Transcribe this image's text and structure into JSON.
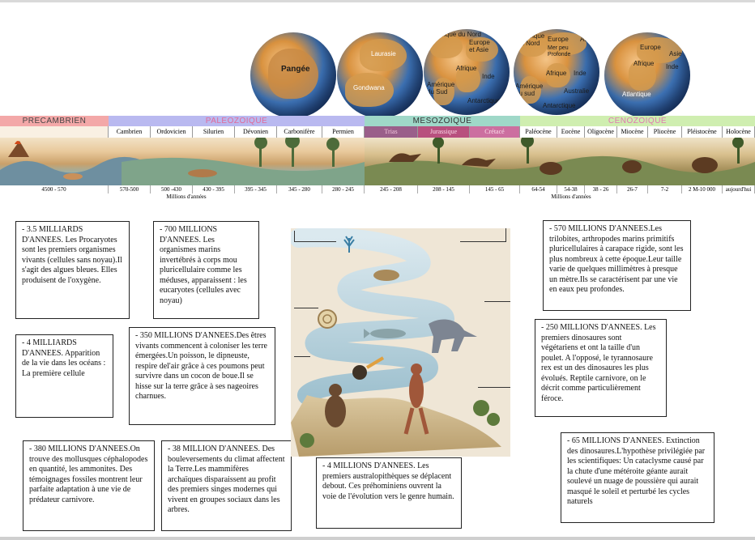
{
  "globes": [
    {
      "labels": [
        "Pangée"
      ]
    },
    {
      "labels": [
        "Laurasie",
        "Gondwana"
      ]
    },
    {
      "labels": [
        "Amérique du Nord",
        "Europe et Asie",
        "Afrique",
        "Inde",
        "Amérique du Sud",
        "Antarctique"
      ]
    },
    {
      "labels": [
        "Amérique du Nord",
        "Europe",
        "Asie",
        "Mer peu Profonde",
        "Afrique",
        "Inde",
        "Amérique du sud",
        "Australie",
        "Antarctique"
      ]
    },
    {
      "labels": [
        "Europe",
        "Asie",
        "Afrique",
        "Inde",
        "Atlantique"
      ]
    }
  ],
  "timeline": {
    "eras": [
      "PRECAMBRIEN",
      "PALEOZOIQUE",
      "MESOZOIQUE",
      "CENOZOIQUE"
    ],
    "periods": [
      "Cambrien",
      "Ordovicien",
      "Silurien",
      "Dévonien",
      "Carbonifère",
      "Permien",
      "Trias",
      "Jurassique",
      "Crétacé",
      "Paléocène",
      "Eocène",
      "Oligocène",
      "Miocène",
      "Pliocène",
      "Pléistocène",
      "Holocène"
    ],
    "ranges": [
      "4500 - 570",
      "570-500",
      "500 -430",
      "430 - 395",
      "395 - 345",
      "345 - 280",
      "280 - 245",
      "245 - 208",
      "208 - 145",
      "145 - 65",
      "64-54",
      "54-38",
      "38 - 26",
      "26-7",
      "7-2",
      "2 M-10 000",
      "aujourd'hui"
    ],
    "unit_left": "Millions d'années",
    "unit_right": "Millions d'années"
  },
  "boxes": {
    "b35md": "- 3.5 MILLIARDS D'ANNEES. Les Procaryotes sont les premiers organismes vivants (cellules sans noyau).Il s'agit des algues bleues. Elles produisent de l'oxygène.",
    "b700m": "- 700 MILLIONS D'ANNEES. Les organismes marins invertébrés à corps mou pluricellulaire comme les méduses, apparaissent : les eucaryotes (cellules avec noyau)",
    "b570m": "- 570 MILLIONS D'ANNEES.Les trilobites, arthropodes marins primitifs pluricellulaires à carapace rigide, sont les plus nombreux à cette époque.Leur taille varie de quelques millimètres à presque un mètre.Ils se caractérisent par une vie en eaux peu profondes.",
    "b4md": "- 4 MILLIARDS D'ANNEES. Apparition de la vie dans les océans : La première cellule",
    "b350m": "- 350 MILLIONS D'ANNEES.Des êtres vivants commencent à coloniser les terre émergées.Un poisson, le dipneuste, respire del'air grâce à ces poumons peut survivre dans un cocon de boue.Il se hisse sur la terre grâce à ses nageoires charnues.",
    "b250m": "- 250 MILLIONS D'ANNEES. Les premiers dinosaures sont végétariens et ont la taille d'un poulet. A l'opposé, le tyrannosaure rex est un des dinosaures les plus évolués. Reptile carnivore, on le décrit comme particulièrement féroce.",
    "b380m": "- 380 MILLIONS D'ANNEES.On trouve des mollusques céphalopodes en quantité, les ammonites. Des témoignages fossiles montrent leur parfaite adaptation à une vie de prédateur carnivore.",
    "b38m": "- 38 MILLION D'ANNEES. Des bouleversements du climat affectent la Terre.Les mammifères archaïques disparaissent au profit des premiers singes modernes qui vivent en groupes sociaux dans les arbres.",
    "b4m": "- 4 MILLIONS D'ANNEES. Les premiers australopithèques se déplacent debout. Ces préhominiens ouvrent la voie de l'évolution vers le genre humain.",
    "b65m": "- 65 MILLIONS D'ANNEES. Extinction des dinosaures.L'hypothèse privilégiée par les scientifiques: Un cataclysme causé par la chute d'une météroite géante aurait soulevé un nuage de poussière qui aurait masqué le soleil et perturbé les cycles naturels"
  },
  "colors": {
    "precambrien": "#f3a8a8",
    "paleozoique": "#b9b9f0",
    "mesozoique": "#9fd8c8",
    "cenozoique": "#cfeeb0",
    "trias": "#9a5f8a",
    "jurassique": "#b8507e",
    "cretace": "#cc6fa0"
  }
}
